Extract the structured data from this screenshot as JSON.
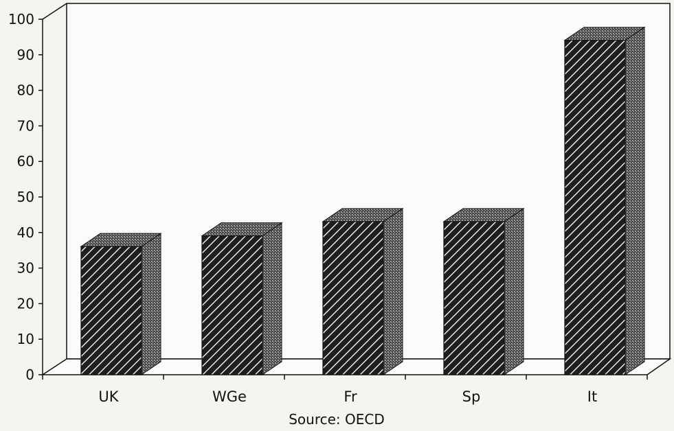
{
  "chart_data": {
    "type": "bar",
    "categories": [
      "UK",
      "WGe",
      "Fr",
      "Sp",
      "It"
    ],
    "values": [
      38,
      41,
      45,
      45,
      96
    ],
    "ylim": [
      0,
      100
    ],
    "yticks": [
      "0",
      "10",
      "20",
      "30",
      "40",
      "50",
      "60",
      "70",
      "80",
      "90",
      "100"
    ],
    "grid": true,
    "source": "Source: OECD",
    "colors": {
      "bar_face": "#1e1e1e",
      "bar_hatch": "#e8e8e8",
      "bar_side": "#555555",
      "grid": "#444444",
      "axis": "#111111"
    }
  }
}
